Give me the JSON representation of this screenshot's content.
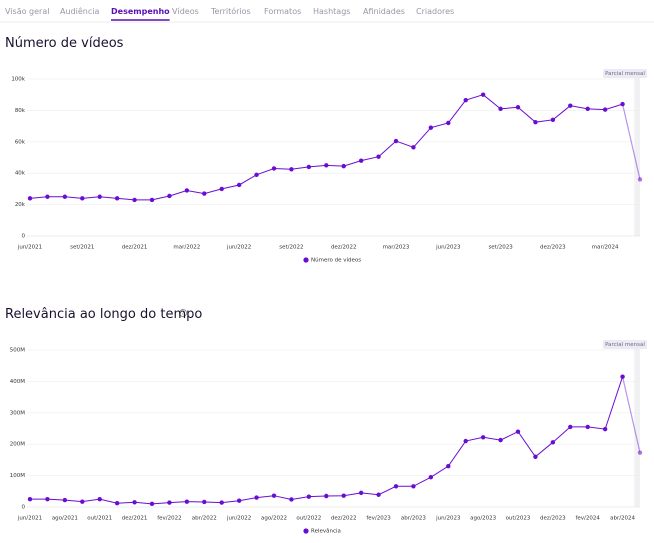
{
  "tabs": [
    "Visão geral",
    "Audiência",
    "Desempenho",
    "Vídeos",
    "Territórios",
    "Formatos",
    "Hashtags",
    "Afinidades",
    "Criadores"
  ],
  "active_tab": 2,
  "chart_data": [
    {
      "type": "line",
      "title": "Número de vídeos",
      "annotation": "Parcial mensal",
      "partial_last": true,
      "grid": true,
      "categories": [
        "jun/2021",
        null,
        null,
        "set/2021",
        null,
        null,
        "dez/2021",
        null,
        null,
        "mar/2022",
        null,
        null,
        "jun/2022",
        null,
        null,
        "set/2022",
        null,
        null,
        "dez/2022",
        null,
        null,
        "mar/2023",
        null,
        null,
        "jun/2023",
        null,
        null,
        "set/2023",
        null,
        null,
        "dez/2023",
        null,
        null,
        "mar/2024",
        null,
        null
      ],
      "series": [
        {
          "name": "Número de vídeos",
          "color": "#6a0dd3",
          "values": [
            24000,
            25000,
            25000,
            24000,
            25000,
            24000,
            23000,
            23000,
            25500,
            29000,
            27000,
            30000,
            32500,
            39000,
            43000,
            42500,
            44000,
            45000,
            44500,
            48000,
            50500,
            60500,
            56500,
            69000,
            72000,
            86500,
            90000,
            81000,
            82000,
            72500,
            74000,
            83000,
            81000,
            80500,
            84000,
            36000
          ]
        }
      ],
      "ylim": [
        0,
        100000
      ],
      "yticks": [
        0,
        {
          "value": 20000,
          "label": "20k"
        },
        {
          "value": 40000,
          "label": "40k"
        },
        {
          "value": 60000,
          "label": "60k"
        },
        {
          "value": 80000,
          "label": "80k"
        },
        {
          "value": 100000,
          "label": "100k"
        }
      ]
    },
    {
      "type": "line",
      "title": "Relevância ao longo do tempo",
      "annotation": "Parcial mensal",
      "partial_last": true,
      "grid": true,
      "categories": [
        "jun/2021",
        null,
        "ago/2021",
        null,
        "out/2021",
        null,
        "dez/2021",
        null,
        "fev/2022",
        null,
        "abr/2022",
        null,
        "jun/2022",
        null,
        "ago/2022",
        null,
        "out/2022",
        null,
        "dez/2022",
        null,
        "fev/2023",
        null,
        "abr/2023",
        null,
        "jun/2023",
        null,
        "ago/2023",
        null,
        "out/2023",
        null,
        "dez/2023",
        null,
        "fev/2024",
        null,
        "abr/2024",
        null
      ],
      "series": [
        {
          "name": "Relevância",
          "color": "#6a0dd3",
          "values": [
            25000000,
            25000000,
            22000000,
            17000000,
            25000000,
            12000000,
            15000000,
            10000000,
            14000000,
            17000000,
            16000000,
            14000000,
            20000000,
            30000000,
            36000000,
            24000000,
            33000000,
            35000000,
            36000000,
            45000000,
            39000000,
            66000000,
            66000000,
            95000000,
            130000000,
            210000000,
            222000000,
            213000000,
            240000000,
            160000000,
            206000000,
            255000000,
            255000000,
            248000000,
            415000000,
            173000000
          ]
        }
      ],
      "ylim": [
        0,
        500000000
      ],
      "yticks": [
        0,
        {
          "value": 100000000,
          "label": "100M"
        },
        {
          "value": 200000000,
          "label": "200M"
        },
        {
          "value": 300000000,
          "label": "300M"
        },
        {
          "value": 400000000,
          "label": "400M"
        },
        {
          "value": 500000000,
          "label": "500M"
        }
      ]
    }
  ]
}
